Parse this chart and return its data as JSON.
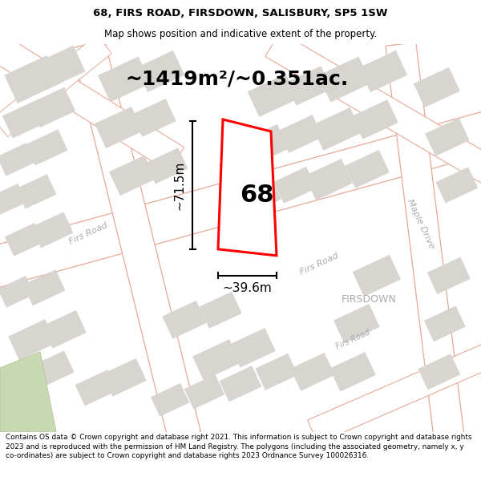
{
  "title": "68, FIRS ROAD, FIRSDOWN, SALISBURY, SP5 1SW",
  "subtitle": "Map shows position and indicative extent of the property.",
  "area_text": "~1419m²/~0.351ac.",
  "dim_width": "~39.6m",
  "dim_height": "~71.5m",
  "label_68": "68",
  "label_firsdown": "FIRSDOWN",
  "label_firs_road": "Firs Road",
  "label_maple_drive": "Maple Drive",
  "footer": "Contains OS data © Crown copyright and database right 2021. This information is subject to Crown copyright and database rights 2023 and is reproduced with the permission of HM Land Registry. The polygons (including the associated geometry, namely x, y co-ordinates) are subject to Crown copyright and database rights 2023 Ordnance Survey 100026316.",
  "map_bg": "#f8f5f3",
  "road_fill": "#ffffff",
  "road_stroke": "#e8a898",
  "building_fill": "#d8d4d0",
  "building_stroke": "#d8d4d0",
  "plot_stroke": "#ff0000",
  "plot_fill": "#ffffff",
  "title_fontsize": 9.5,
  "subtitle_fontsize": 8.5,
  "area_fontsize": 18,
  "dim_fontsize": 11,
  "road_label_fontsize": 8,
  "footer_fontsize": 6.4
}
